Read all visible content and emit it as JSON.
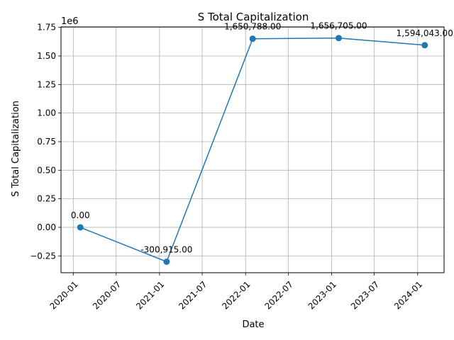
{
  "chart_data": {
    "type": "line",
    "title": "S Total Capitalization",
    "xlabel": "Date",
    "ylabel": "S Total Capitalization",
    "y_offset_text": "1e6",
    "y_multiplier": 1000000,
    "x": [
      "2020-01-31",
      "2021-01-31",
      "2022-01-31",
      "2023-01-31",
      "2024-01-31"
    ],
    "y": [
      0,
      -300915,
      1650788,
      1656705,
      1594043
    ],
    "data_labels": [
      "0.00",
      "-300,915.00",
      "1,650,788.00",
      "1,656,705.00",
      "1,594,043.00"
    ],
    "xlim": [
      "2019-11-10",
      "2024-04-22"
    ],
    "ylim": [
      -397000,
      1754000
    ],
    "x_ticks": [
      {
        "date": "2020-01-01",
        "label": "2020-01"
      },
      {
        "date": "2020-07-01",
        "label": "2020-07"
      },
      {
        "date": "2021-01-01",
        "label": "2021-01"
      },
      {
        "date": "2021-07-01",
        "label": "2021-07"
      },
      {
        "date": "2022-01-01",
        "label": "2022-01"
      },
      {
        "date": "2022-07-01",
        "label": "2022-07"
      },
      {
        "date": "2023-01-01",
        "label": "2023-01"
      },
      {
        "date": "2023-07-01",
        "label": "2023-07"
      },
      {
        "date": "2024-01-01",
        "label": "2024-01"
      }
    ],
    "y_ticks": [
      {
        "value": -250000,
        "label": "−0.25"
      },
      {
        "value": 0,
        "label": "0.00"
      },
      {
        "value": 250000,
        "label": "0.25"
      },
      {
        "value": 500000,
        "label": "0.50"
      },
      {
        "value": 750000,
        "label": "0.75"
      },
      {
        "value": 1000000,
        "label": "1.00"
      },
      {
        "value": 1250000,
        "label": "1.25"
      },
      {
        "value": 1500000,
        "label": "1.50"
      },
      {
        "value": 1750000,
        "label": "1.75"
      }
    ],
    "grid": true,
    "line_color": "#1f77b4",
    "marker": "circle"
  }
}
